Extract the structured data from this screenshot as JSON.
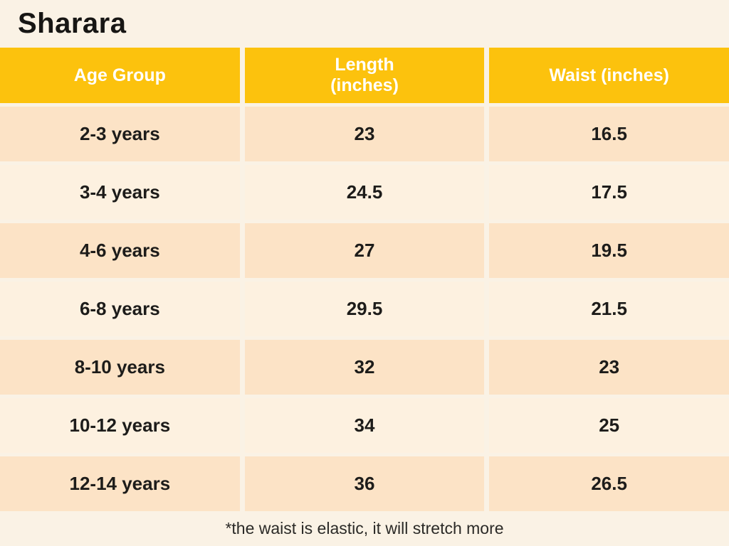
{
  "title": "Sharara",
  "table": {
    "headers": {
      "age": "Age Group",
      "length": "Length\n(inches)",
      "waist": "Waist (inches)"
    },
    "rows": [
      {
        "age": "2-3 years",
        "length": "23",
        "waist": "16.5"
      },
      {
        "age": "3-4 years",
        "length": "24.5",
        "waist": "17.5"
      },
      {
        "age": "4-6 years",
        "length": "27",
        "waist": "19.5"
      },
      {
        "age": "6-8 years",
        "length": "29.5",
        "waist": "21.5"
      },
      {
        "age": "8-10 years",
        "length": "32",
        "waist": "23"
      },
      {
        "age": "10-12 years",
        "length": "34",
        "waist": "25"
      },
      {
        "age": "12-14 years",
        "length": "36",
        "waist": "26.5"
      }
    ]
  },
  "footnote": "*the waist is elastic, it will stretch more",
  "colors": {
    "page_background": "#FAF2E5",
    "header_background": "#FCC20D",
    "row_dark": "#FCE3C6",
    "row_light": "#FDF1E0",
    "header_text": "#FFFFFF",
    "body_text": "#1D1C1A"
  },
  "chart_data": {
    "type": "table",
    "title": "Sharara",
    "columns": [
      "Age Group",
      "Length (inches)",
      "Waist (inches)"
    ],
    "rows": [
      [
        "2-3 years",
        23,
        16.5
      ],
      [
        "3-4 years",
        24.5,
        17.5
      ],
      [
        "4-6 years",
        27,
        19.5
      ],
      [
        "6-8 years",
        29.5,
        21.5
      ],
      [
        "8-10 years",
        32,
        23
      ],
      [
        "10-12 years",
        34,
        25
      ],
      [
        "12-14 years",
        36,
        26.5
      ]
    ],
    "annotations": [
      "*the waist is elastic, it will stretch more"
    ],
    "layout_hints": {
      "header_style": "yellow background, white bold text",
      "row_striping": "alternating dark/light peach starting dark",
      "units": "inches"
    }
  }
}
